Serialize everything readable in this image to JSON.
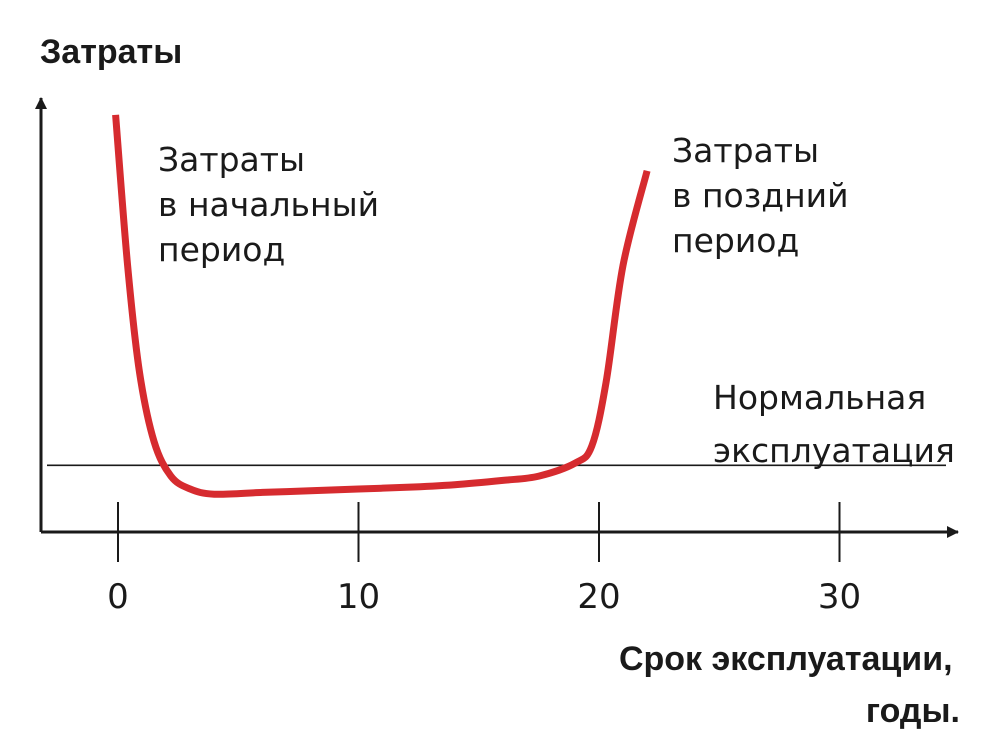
{
  "chart_data": {
    "type": "line",
    "title": "",
    "ylabel": "Затраты",
    "xlabel_lines": [
      "Срок эксплуатации,",
      "годы."
    ],
    "xlim": [
      -3.2,
      35
    ],
    "ylim": [
      0,
      100
    ],
    "xticks": [
      0,
      10,
      20,
      30
    ],
    "tick_labels": [
      "0",
      "10",
      "20",
      "30"
    ],
    "grid": false,
    "series": [
      {
        "color": "#d62b2f",
        "x": [
          -0.1,
          0.4,
          0.9,
          1.5,
          2.2,
          3.0,
          4.0,
          6.0,
          8.0,
          10.0,
          12.0,
          14.0,
          16.0,
          17.5,
          19.0,
          19.7,
          20.3,
          21.0,
          22.0
        ],
        "y": [
          97,
          62,
          37,
          21,
          13,
          10,
          8.8,
          9.2,
          9.6,
          10.0,
          10.4,
          11.0,
          12.0,
          13.0,
          16.0,
          20.0,
          35.0,
          62.0,
          84.0
        ]
      }
    ],
    "reference_line": {
      "y": 15.5,
      "label_lines": [
        "Нормальная",
        "эксплуатация"
      ]
    },
    "annotations": [
      {
        "lines": [
          "Затраты",
          "в начальный",
          "период"
        ]
      },
      {
        "lines": [
          "Затраты",
          "в поздний",
          "период"
        ]
      }
    ]
  }
}
